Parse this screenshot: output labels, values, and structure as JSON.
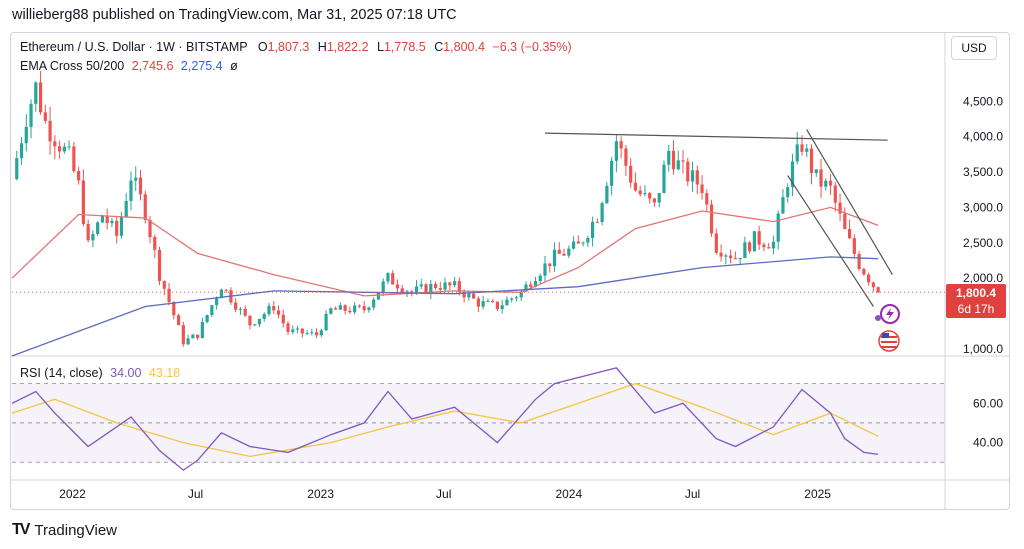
{
  "publish_line": "willieberg88 published on TradingView.com, Mar 31, 2025 07:18 UTC",
  "header": {
    "symbol": "Ethereum / U.S. Dollar · 1W · BITSTAMP",
    "o_label": "O",
    "o_value": "1,807.3",
    "h_label": "H",
    "h_value": "1,822.2",
    "l_label": "L",
    "l_value": "1,778.5",
    "c_label": "C",
    "c_value": "1,800.4",
    "change": "−6.3 (−0.35%)",
    "ema_label": "EMA Cross 50/200",
    "ema_fast": "2,745.6",
    "ema_slow": "2,275.4",
    "ema_icon": "ø"
  },
  "currency_button": "USD",
  "rsi_header": {
    "label": "RSI (14, close)",
    "rsi_value": "34.00",
    "ma_value": "43.18"
  },
  "footer": {
    "logo_text": "TV",
    "brand": "TradingView"
  },
  "price_badge": {
    "price": "1,800.4",
    "countdown": "6d 17h"
  },
  "colors": {
    "up": "#26a69a",
    "down": "#ef5350",
    "ema_fast": "#e57373",
    "ema_slow": "#5c6bc0",
    "rsi": "#7e57c2",
    "rsi_ma": "#f5c542",
    "trendline": "#555555"
  },
  "chart_data": [
    {
      "type": "candlestick",
      "title": "Ethereum / U.S. Dollar · 1W · BITSTAMP",
      "price_axis_ticks": [
        "4,500.0",
        "4,000.0",
        "3,500.0",
        "3,000.0",
        "2,500.0",
        "2,000.0",
        "1,000.0"
      ],
      "price_axis_tick_values": [
        4500,
        4000,
        3500,
        3000,
        2500,
        2000,
        1000
      ],
      "x_ticks": [
        "2022",
        "Jul",
        "2023",
        "Jul",
        "2024",
        "Jul",
        "2025"
      ],
      "x_tick_dates": [
        "2022-01-01",
        "2022-07-01",
        "2023-01-01",
        "2023-07-01",
        "2024-01-01",
        "2024-07-01",
        "2025-01-01"
      ],
      "x_range": [
        "2021-10-04",
        "2025-06-30"
      ],
      "y_range": [
        900,
        4900
      ],
      "close_path": [
        {
          "date": "2021-10-04",
          "close": 3400
        },
        {
          "date": "2021-10-25",
          "close": 4300
        },
        {
          "date": "2021-11-08",
          "close": 4700
        },
        {
          "date": "2021-11-22",
          "close": 4200
        },
        {
          "date": "2021-12-06",
          "close": 4000
        },
        {
          "date": "2021-12-27",
          "close": 3700
        },
        {
          "date": "2022-01-10",
          "close": 3300
        },
        {
          "date": "2022-01-24",
          "close": 2450
        },
        {
          "date": "2022-02-14",
          "close": 2900
        },
        {
          "date": "2022-03-07",
          "close": 2600
        },
        {
          "date": "2022-03-28",
          "close": 3450
        },
        {
          "date": "2022-04-18",
          "close": 2950
        },
        {
          "date": "2022-05-09",
          "close": 2050
        },
        {
          "date": "2022-06-13",
          "close": 1100
        },
        {
          "date": "2022-07-04",
          "close": 1200
        },
        {
          "date": "2022-08-08",
          "close": 1900
        },
        {
          "date": "2022-09-19",
          "close": 1350
        },
        {
          "date": "2022-10-24",
          "close": 1600
        },
        {
          "date": "2022-11-14",
          "close": 1250
        },
        {
          "date": "2022-12-26",
          "close": 1200
        },
        {
          "date": "2023-01-16",
          "close": 1550
        },
        {
          "date": "2023-03-06",
          "close": 1560
        },
        {
          "date": "2023-04-10",
          "close": 2000
        },
        {
          "date": "2023-05-15",
          "close": 1800
        },
        {
          "date": "2023-06-19",
          "close": 1900
        },
        {
          "date": "2023-07-17",
          "close": 1880
        },
        {
          "date": "2023-08-21",
          "close": 1650
        },
        {
          "date": "2023-09-18",
          "close": 1600
        },
        {
          "date": "2023-10-23",
          "close": 1800
        },
        {
          "date": "2023-11-13",
          "close": 2050
        },
        {
          "date": "2023-12-11",
          "close": 2300
        },
        {
          "date": "2024-01-15",
          "close": 2450
        },
        {
          "date": "2024-02-12",
          "close": 2900
        },
        {
          "date": "2024-03-11",
          "close": 3950
        },
        {
          "date": "2024-04-08",
          "close": 3250
        },
        {
          "date": "2024-05-06",
          "close": 3000
        },
        {
          "date": "2024-05-27",
          "close": 3800
        },
        {
          "date": "2024-06-17",
          "close": 3500
        },
        {
          "date": "2024-07-15",
          "close": 3300
        },
        {
          "date": "2024-08-05",
          "close": 2450
        },
        {
          "date": "2024-09-02",
          "close": 2300
        },
        {
          "date": "2024-09-30",
          "close": 2550
        },
        {
          "date": "2024-10-28",
          "close": 2500
        },
        {
          "date": "2024-11-18",
          "close": 3400
        },
        {
          "date": "2024-12-09",
          "close": 3900
        },
        {
          "date": "2024-12-30",
          "close": 3400
        },
        {
          "date": "2025-01-20",
          "close": 3250
        },
        {
          "date": "2025-02-10",
          "close": 2650
        },
        {
          "date": "2025-03-03",
          "close": 2200
        },
        {
          "date": "2025-03-31",
          "close": 1800
        }
      ],
      "ema_50": [
        {
          "date": "2021-10-04",
          "close": 2000
        },
        {
          "date": "2022-01-10",
          "close": 2900
        },
        {
          "date": "2022-04-18",
          "close": 2850
        },
        {
          "date": "2022-07-04",
          "close": 2350
        },
        {
          "date": "2022-10-24",
          "close": 2050
        },
        {
          "date": "2023-03-06",
          "close": 1750
        },
        {
          "date": "2023-07-17",
          "close": 1820
        },
        {
          "date": "2023-10-23",
          "close": 1800
        },
        {
          "date": "2024-01-15",
          "close": 2150
        },
        {
          "date": "2024-04-08",
          "close": 2700
        },
        {
          "date": "2024-07-15",
          "close": 2950
        },
        {
          "date": "2024-10-28",
          "close": 2800
        },
        {
          "date": "2025-01-20",
          "close": 3000
        },
        {
          "date": "2025-03-31",
          "close": 2745.6
        }
      ],
      "ema_200": [
        {
          "date": "2021-10-04",
          "close": 900
        },
        {
          "date": "2022-04-18",
          "close": 1600
        },
        {
          "date": "2022-10-24",
          "close": 1820
        },
        {
          "date": "2023-07-17",
          "close": 1780
        },
        {
          "date": "2024-01-15",
          "close": 1880
        },
        {
          "date": "2024-07-15",
          "close": 2150
        },
        {
          "date": "2025-01-20",
          "close": 2300
        },
        {
          "date": "2025-03-31",
          "close": 2275.4
        }
      ],
      "resistance_line": [
        {
          "date": "2023-11-27",
          "price": 4050
        },
        {
          "date": "2025-04-14",
          "price": 3950
        }
      ],
      "channel_upper": [
        {
          "date": "2024-12-16",
          "price": 4100
        },
        {
          "date": "2025-04-21",
          "price": 2050
        }
      ],
      "channel_lower": [
        {
          "date": "2024-11-18",
          "price": 3450
        },
        {
          "date": "2025-03-24",
          "price": 1600
        }
      ],
      "last_price": 1800.4
    },
    {
      "type": "line",
      "title": "RSI (14, close)",
      "y_axis_ticks": [
        "60.00",
        "40.00"
      ],
      "y_axis_tick_values": [
        60,
        40
      ],
      "band_levels": [
        70,
        50,
        30
      ],
      "y_range": [
        22,
        82
      ],
      "series": [
        {
          "name": "RSI",
          "values": [
            {
              "date": "2021-10-04",
              "v": 60
            },
            {
              "date": "2021-11-08",
              "v": 66
            },
            {
              "date": "2021-12-06",
              "v": 55
            },
            {
              "date": "2022-01-24",
              "v": 38
            },
            {
              "date": "2022-03-28",
              "v": 53
            },
            {
              "date": "2022-05-09",
              "v": 36
            },
            {
              "date": "2022-06-13",
              "v": 26
            },
            {
              "date": "2022-07-04",
              "v": 31
            },
            {
              "date": "2022-08-08",
              "v": 45
            },
            {
              "date": "2022-09-19",
              "v": 38
            },
            {
              "date": "2022-11-14",
              "v": 35
            },
            {
              "date": "2023-01-16",
              "v": 44
            },
            {
              "date": "2023-03-06",
              "v": 50
            },
            {
              "date": "2023-04-10",
              "v": 66
            },
            {
              "date": "2023-05-15",
              "v": 52
            },
            {
              "date": "2023-07-17",
              "v": 58
            },
            {
              "date": "2023-09-18",
              "v": 40
            },
            {
              "date": "2023-11-13",
              "v": 62
            },
            {
              "date": "2023-12-11",
              "v": 70
            },
            {
              "date": "2024-03-11",
              "v": 78
            },
            {
              "date": "2024-05-06",
              "v": 55
            },
            {
              "date": "2024-06-17",
              "v": 60
            },
            {
              "date": "2024-08-05",
              "v": 42
            },
            {
              "date": "2024-09-02",
              "v": 38
            },
            {
              "date": "2024-10-28",
              "v": 48
            },
            {
              "date": "2024-12-09",
              "v": 67
            },
            {
              "date": "2025-01-20",
              "v": 55
            },
            {
              "date": "2025-02-10",
              "v": 42
            },
            {
              "date": "2025-03-10",
              "v": 35
            },
            {
              "date": "2025-03-31",
              "v": 34
            }
          ]
        },
        {
          "name": "RSI-based MA",
          "values": [
            {
              "date": "2021-10-04",
              "v": 55
            },
            {
              "date": "2021-12-06",
              "v": 62
            },
            {
              "date": "2022-03-07",
              "v": 50
            },
            {
              "date": "2022-06-13",
              "v": 40
            },
            {
              "date": "2022-09-19",
              "v": 33
            },
            {
              "date": "2023-01-16",
              "v": 40
            },
            {
              "date": "2023-04-10",
              "v": 48
            },
            {
              "date": "2023-07-17",
              "v": 56
            },
            {
              "date": "2023-10-23",
              "v": 50
            },
            {
              "date": "2024-01-15",
              "v": 60
            },
            {
              "date": "2024-04-08",
              "v": 70
            },
            {
              "date": "2024-07-15",
              "v": 58
            },
            {
              "date": "2024-10-28",
              "v": 44
            },
            {
              "date": "2025-01-20",
              "v": 55
            },
            {
              "date": "2025-03-31",
              "v": 43.18
            }
          ]
        }
      ]
    }
  ]
}
